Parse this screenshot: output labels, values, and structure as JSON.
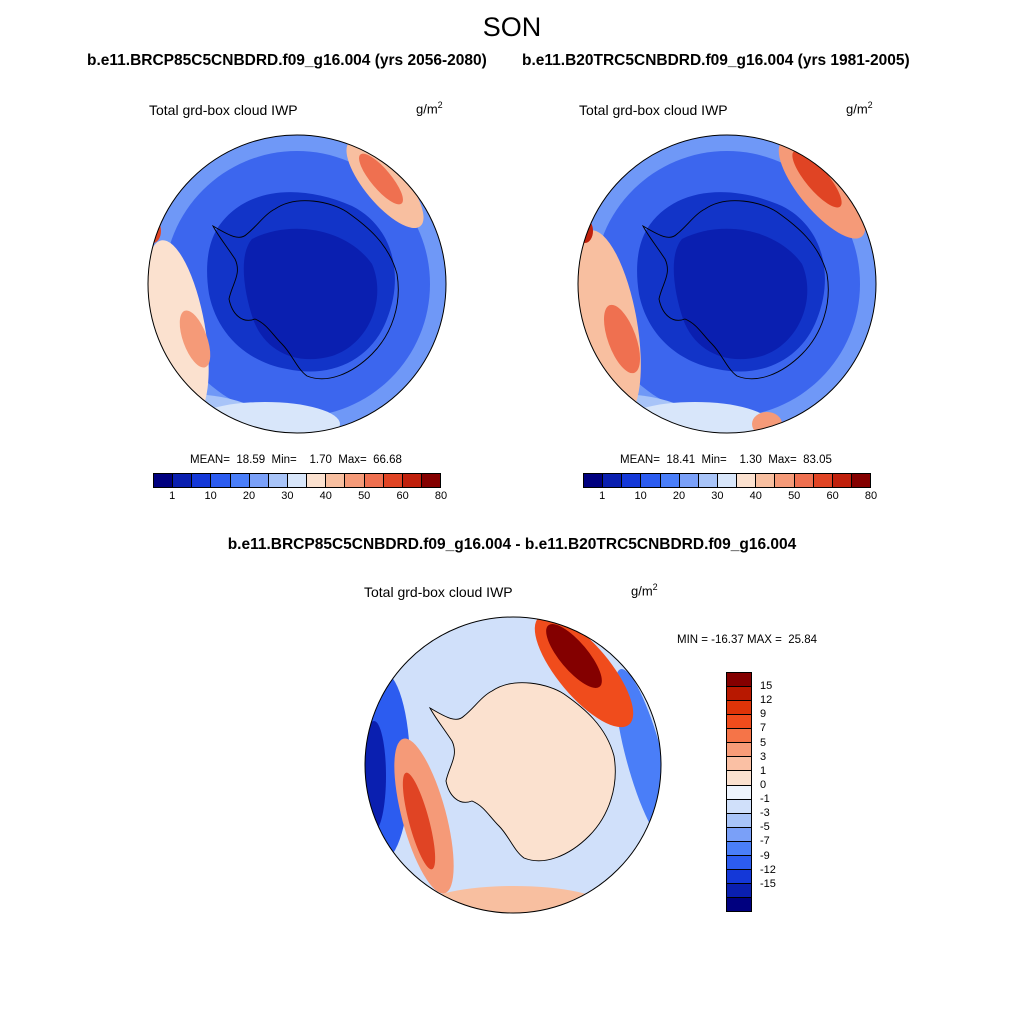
{
  "figure": {
    "title": "SON",
    "left_case": "b.e11.BRCP85C5CNBDRD.f09_g16.004 (yrs 2056-2080)",
    "right_case": "b.e11.B20TRC5CNBDRD.f09_g16.004 (yrs 1981-2005)",
    "diff_title": "b.e11.BRCP85C5CNBDRD.f09_g16.004 - b.e11.B20TRC5CNBDRD.f09_g16.004"
  },
  "panels": [
    {
      "variable": "Total grd-box cloud IWP",
      "units": "g/m",
      "units_exp": "2",
      "stats": "MEAN=  18.59  Min=    1.70  Max=  66.68"
    },
    {
      "variable": "Total grd-box cloud IWP",
      "units": "g/m",
      "units_exp": "2",
      "stats": "MEAN=  18.41  Min=    1.30  Max=  83.05"
    }
  ],
  "diff_panel": {
    "variable": "Total grd-box cloud IWP",
    "units": "g/m",
    "units_exp": "2",
    "stats": "MIN = -16.37 MAX =  25.84"
  },
  "colorbars": {
    "abs": {
      "colors": [
        "#00007f",
        "#0a1fb0",
        "#1438d8",
        "#2c5cf0",
        "#4a7ef8",
        "#7aa0f8",
        "#a8c4f8",
        "#d8e6fa",
        "#fbe1cf",
        "#f8bfa0",
        "#f59a78",
        "#ef7050",
        "#e04424",
        "#c0200c",
        "#840000"
      ],
      "labels": [
        "1",
        "10",
        "20",
        "30",
        "40",
        "50",
        "60",
        "80"
      ]
    },
    "diff": {
      "colors": [
        "#840000",
        "#b81800",
        "#de3408",
        "#f04c1c",
        "#f57448",
        "#f89c78",
        "#fac0a4",
        "#fbe1cf",
        "#eef4fd",
        "#d0e0fa",
        "#a8c4f8",
        "#7aa0f8",
        "#4a7ef8",
        "#2c5cf0",
        "#1438d8",
        "#0a1fb0",
        "#00007f"
      ],
      "labels": [
        "15",
        "12",
        "9",
        "7",
        "5",
        "3",
        "1",
        "0",
        "-1",
        "-3",
        "-5",
        "-7",
        "-9",
        "-12",
        "-15"
      ]
    }
  },
  "maps": {
    "ocean_abs": "#3c66ee",
    "ice_abs": "#1234c8",
    "ocean_diff": "#d0e0fa",
    "ice_diff": "#fbe1cf"
  }
}
